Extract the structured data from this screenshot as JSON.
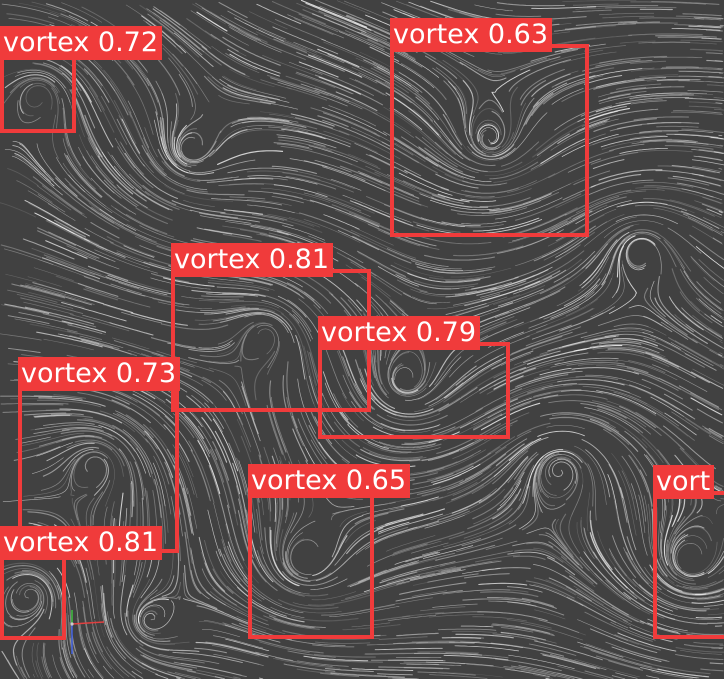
{
  "detections": [
    {
      "class_label": "vortex",
      "score": 0.72
    },
    {
      "class_label": "vortex",
      "score": 0.63
    },
    {
      "class_label": "vortex",
      "score": 0.81
    },
    {
      "class_label": "vortex",
      "score": 0.79
    },
    {
      "class_label": "vortex",
      "score": 0.73
    },
    {
      "class_label": "vortex",
      "score": 0.65
    },
    {
      "class_label": "vortex",
      "score": 0.81
    },
    {
      "class_label": "vort",
      "score": null
    }
  ],
  "colors": {
    "box": "#f03b3b",
    "label_text": "#ffffff",
    "background": "#414141",
    "streamline": "#e6e6e6"
  },
  "gizmo": {
    "icon": "axes-gizmo-icon",
    "x_color": "#e04040",
    "y_color": "#40c040",
    "z_color": "#4060e0"
  }
}
